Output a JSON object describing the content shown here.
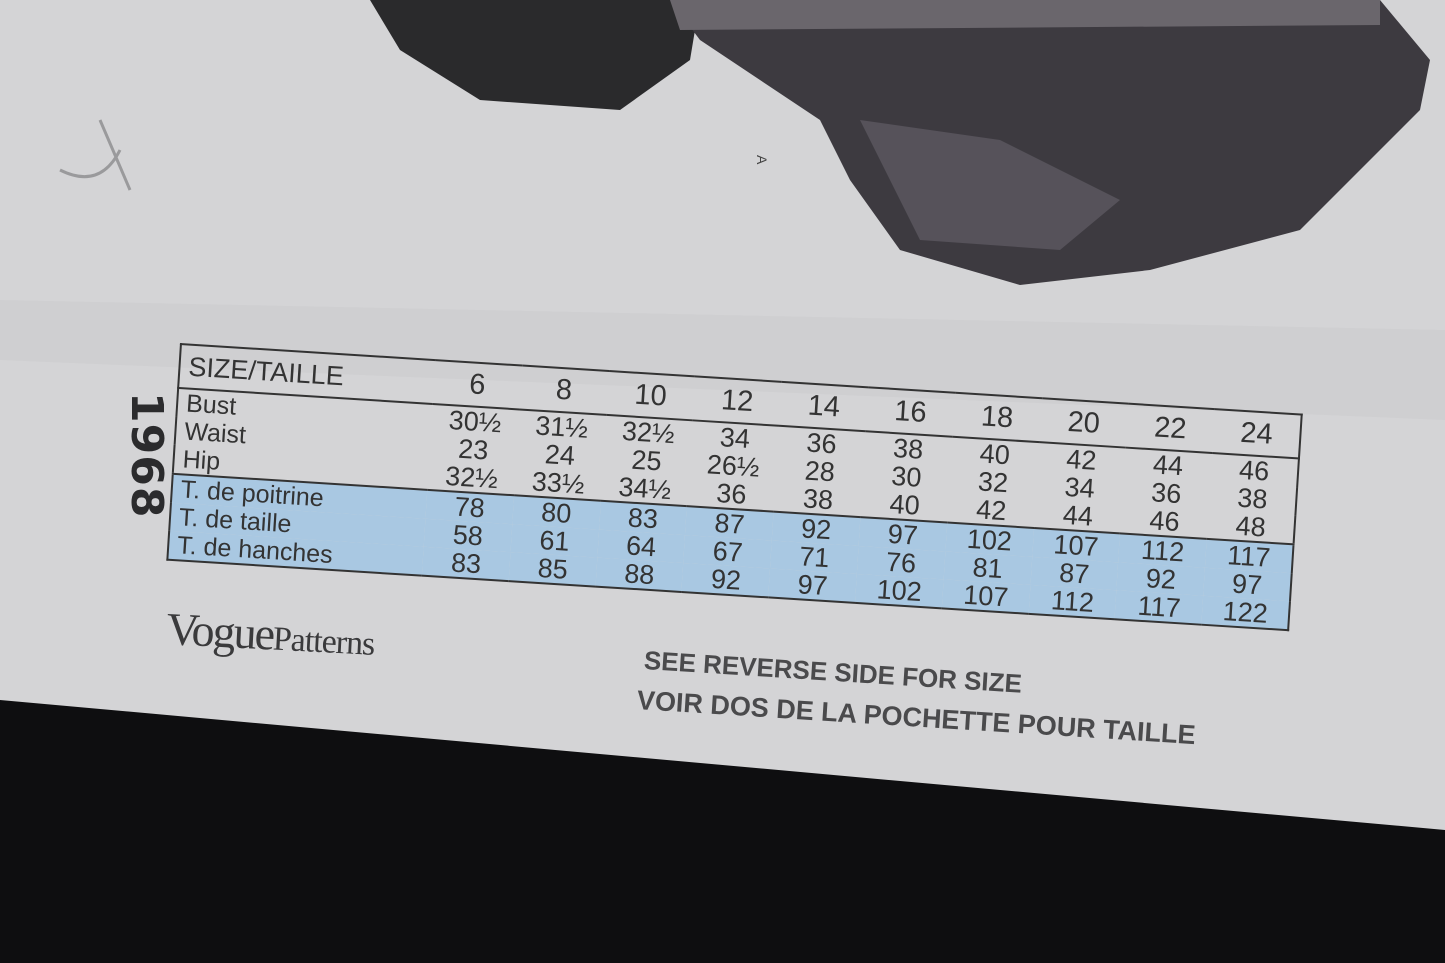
{
  "envelope": {
    "pattern_number": "1968",
    "view_marker": "A",
    "logo": "VoguePatterns",
    "notes": [
      "SEE REVERSE SIDE FOR SIZE",
      "VOIR DOS DE LA POCHETTE POUR TAILLE"
    ]
  },
  "size_chart": {
    "header_label": "SIZE/TAILLE",
    "sizes": [
      "6",
      "8",
      "10",
      "12",
      "14",
      "16",
      "18",
      "20",
      "22",
      "24"
    ],
    "inch_rows": [
      {
        "label": "Bust",
        "values": [
          "30½",
          "31½",
          "32½",
          "34",
          "36",
          "38",
          "40",
          "42",
          "44",
          "46"
        ]
      },
      {
        "label": "Waist",
        "values": [
          "23",
          "24",
          "25",
          "26½",
          "28",
          "30",
          "32",
          "34",
          "36",
          "38"
        ]
      },
      {
        "label": "Hip",
        "values": [
          "32½",
          "33½",
          "34½",
          "36",
          "38",
          "40",
          "42",
          "44",
          "46",
          "48"
        ]
      }
    ],
    "cm_rows": [
      {
        "label": "T. de poitrine",
        "values": [
          "78",
          "80",
          "83",
          "87",
          "92",
          "97",
          "102",
          "107",
          "112",
          "117"
        ]
      },
      {
        "label": "T. de taille",
        "values": [
          "58",
          "61",
          "64",
          "67",
          "71",
          "76",
          "81",
          "87",
          "92",
          "97"
        ]
      },
      {
        "label": "T. de hanches",
        "values": [
          "83",
          "85",
          "88",
          "92",
          "97",
          "102",
          "107",
          "112",
          "117",
          "122"
        ]
      }
    ],
    "colors": {
      "metric_band": "#a9c8e2",
      "text": "#333333"
    }
  }
}
